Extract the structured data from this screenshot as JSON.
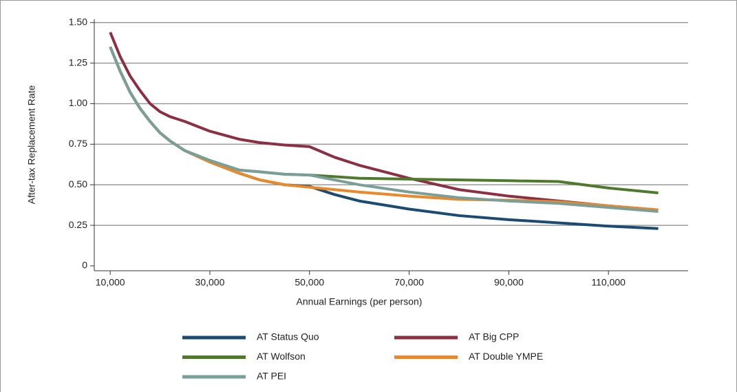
{
  "chart_data": {
    "type": "line",
    "x_label": "Annual Earnings (per person)",
    "y_label": "After-tax Replacement Rate",
    "x": [
      10000,
      12000,
      14000,
      16000,
      18000,
      20000,
      22000,
      25000,
      30000,
      36000,
      40000,
      45000,
      50000,
      55000,
      60000,
      70000,
      80000,
      90000,
      100000,
      110000,
      120000
    ],
    "series": [
      {
        "name": "AT Status Quo",
        "color": "#1b4a72",
        "values": [
          1.35,
          1.2,
          1.07,
          0.97,
          0.89,
          0.82,
          0.77,
          0.71,
          0.64,
          0.57,
          0.53,
          0.5,
          0.49,
          0.44,
          0.4,
          0.35,
          0.31,
          0.285,
          0.265,
          0.245,
          0.23
        ]
      },
      {
        "name": "AT Big CPP",
        "color": "#8b3042",
        "values": [
          1.44,
          1.29,
          1.17,
          1.08,
          1.0,
          0.95,
          0.92,
          0.89,
          0.83,
          0.78,
          0.76,
          0.745,
          0.735,
          0.67,
          0.62,
          0.54,
          0.47,
          0.43,
          0.4,
          0.37,
          0.345
        ]
      },
      {
        "name": "AT Wolfson",
        "color": "#4f7a2e",
        "values": [
          1.35,
          1.2,
          1.07,
          0.97,
          0.89,
          0.82,
          0.77,
          0.71,
          0.65,
          0.59,
          0.58,
          0.565,
          0.56,
          0.55,
          0.54,
          0.535,
          0.53,
          0.525,
          0.52,
          0.48,
          0.45
        ]
      },
      {
        "name": "AT Double YMPE",
        "color": "#e8892a",
        "values": [
          1.35,
          1.2,
          1.07,
          0.97,
          0.89,
          0.82,
          0.77,
          0.71,
          0.64,
          0.57,
          0.53,
          0.5,
          0.485,
          0.47,
          0.455,
          0.43,
          0.41,
          0.405,
          0.395,
          0.37,
          0.345
        ]
      },
      {
        "name": "AT PEI",
        "color": "#7a9e98",
        "values": [
          1.35,
          1.2,
          1.07,
          0.97,
          0.89,
          0.82,
          0.77,
          0.71,
          0.65,
          0.59,
          0.58,
          0.565,
          0.56,
          0.53,
          0.5,
          0.455,
          0.42,
          0.4,
          0.385,
          0.36,
          0.335
        ]
      }
    ],
    "xlim": [
      6800,
      126000
    ],
    "xticks": [
      {
        "value": 10000,
        "label": "10,000"
      },
      {
        "value": 30000,
        "label": "30,000"
      },
      {
        "value": 50000,
        "label": "50,000"
      },
      {
        "value": 70000,
        "label": "70,000"
      },
      {
        "value": 90000,
        "label": "90,000"
      },
      {
        "value": 110000,
        "label": "110,000"
      }
    ],
    "ylim": [
      -0.03,
      1.52
    ],
    "yticks": [
      0,
      0.25,
      {
        "value": 0.5,
        "label": "0.50"
      },
      0.75,
      {
        "value": 1,
        "label": "1.00"
      },
      1.25,
      {
        "value": 1.5,
        "label": "1.50"
      }
    ],
    "grid": true
  }
}
